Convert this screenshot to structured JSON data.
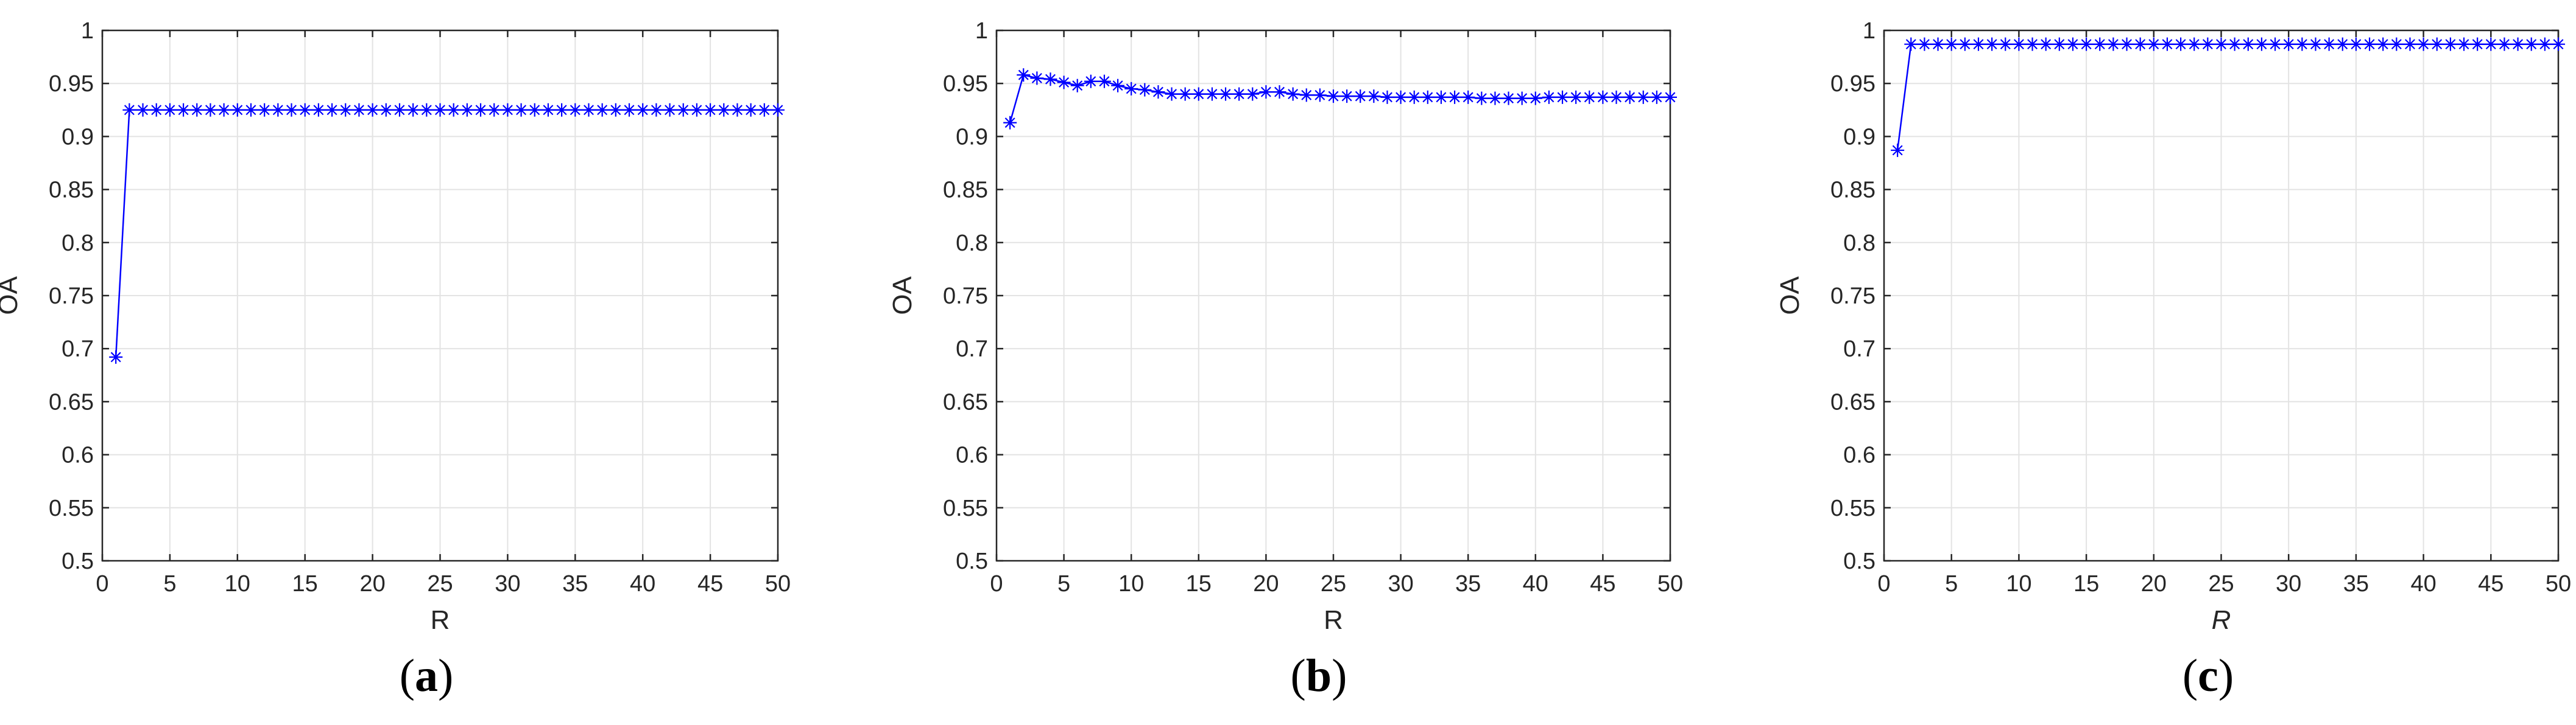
{
  "chart_data": [
    {
      "type": "line",
      "panel_label": "a",
      "title": "",
      "xlabel": "R",
      "ylabel": "OA",
      "xlim": [
        0,
        50
      ],
      "ylim": [
        0.5,
        1
      ],
      "xticks": [
        "0",
        "5",
        "10",
        "15",
        "20",
        "25",
        "30",
        "35",
        "40",
        "45",
        "50"
      ],
      "yticks": [
        "0.5",
        "0.55",
        "0.6",
        "0.65",
        "0.7",
        "0.75",
        "0.8",
        "0.85",
        "0.9",
        "0.95",
        "1"
      ],
      "grid": true,
      "marker": "asterisk",
      "color": "#0000ff",
      "x": [
        1,
        2,
        3,
        4,
        5,
        6,
        7,
        8,
        9,
        10,
        11,
        12,
        13,
        14,
        15,
        16,
        17,
        18,
        19,
        20,
        21,
        22,
        23,
        24,
        25,
        26,
        27,
        28,
        29,
        30,
        31,
        32,
        33,
        34,
        35,
        36,
        37,
        38,
        39,
        40,
        41,
        42,
        43,
        44,
        45,
        46,
        47,
        48,
        49,
        50
      ],
      "y": [
        0.692,
        0.925,
        0.925,
        0.925,
        0.925,
        0.925,
        0.925,
        0.925,
        0.925,
        0.925,
        0.925,
        0.925,
        0.925,
        0.925,
        0.925,
        0.925,
        0.925,
        0.925,
        0.925,
        0.925,
        0.925,
        0.925,
        0.925,
        0.925,
        0.925,
        0.925,
        0.925,
        0.925,
        0.925,
        0.925,
        0.925,
        0.925,
        0.925,
        0.925,
        0.925,
        0.925,
        0.925,
        0.925,
        0.925,
        0.925,
        0.925,
        0.925,
        0.925,
        0.925,
        0.925,
        0.925,
        0.925,
        0.925,
        0.925,
        0.925
      ]
    },
    {
      "type": "line",
      "panel_label": "b",
      "title": "",
      "xlabel": "R",
      "ylabel": "OA",
      "xlim": [
        0,
        50
      ],
      "ylim": [
        0.5,
        1
      ],
      "xticks": [
        "0",
        "5",
        "10",
        "15",
        "20",
        "25",
        "30",
        "35",
        "40",
        "45",
        "50"
      ],
      "yticks": [
        "0.5",
        "0.55",
        "0.6",
        "0.65",
        "0.7",
        "0.75",
        "0.8",
        "0.85",
        "0.9",
        "0.95",
        "1"
      ],
      "grid": true,
      "marker": "asterisk",
      "color": "#0000ff",
      "x": [
        1,
        2,
        3,
        4,
        5,
        6,
        7,
        8,
        9,
        10,
        11,
        12,
        13,
        14,
        15,
        16,
        17,
        18,
        19,
        20,
        21,
        22,
        23,
        24,
        25,
        26,
        27,
        28,
        29,
        30,
        31,
        32,
        33,
        34,
        35,
        36,
        37,
        38,
        39,
        40,
        41,
        42,
        43,
        44,
        45,
        46,
        47,
        48,
        49,
        50
      ],
      "y": [
        0.913,
        0.958,
        0.955,
        0.954,
        0.951,
        0.948,
        0.952,
        0.952,
        0.948,
        0.945,
        0.944,
        0.942,
        0.94,
        0.94,
        0.94,
        0.94,
        0.94,
        0.94,
        0.94,
        0.942,
        0.942,
        0.94,
        0.939,
        0.939,
        0.938,
        0.938,
        0.938,
        0.938,
        0.937,
        0.937,
        0.937,
        0.937,
        0.937,
        0.937,
        0.937,
        0.936,
        0.936,
        0.936,
        0.936,
        0.936,
        0.937,
        0.937,
        0.937,
        0.937,
        0.937,
        0.937,
        0.937,
        0.937,
        0.937,
        0.937
      ]
    },
    {
      "type": "line",
      "panel_label": "c",
      "title": "",
      "xlabel": "R",
      "xlabel_italic": true,
      "ylabel": "OA",
      "xlim": [
        0,
        50
      ],
      "ylim": [
        0.5,
        1
      ],
      "xticks": [
        "0",
        "5",
        "10",
        "15",
        "20",
        "25",
        "30",
        "35",
        "40",
        "45",
        "50"
      ],
      "yticks": [
        "0.5",
        "0.55",
        "0.6",
        "0.65",
        "0.7",
        "0.75",
        "0.8",
        "0.85",
        "0.9",
        "0.95",
        "1"
      ],
      "grid": true,
      "marker": "asterisk",
      "color": "#0000ff",
      "x": [
        1,
        2,
        3,
        4,
        5,
        6,
        7,
        8,
        9,
        10,
        11,
        12,
        13,
        14,
        15,
        16,
        17,
        18,
        19,
        20,
        21,
        22,
        23,
        24,
        25,
        26,
        27,
        28,
        29,
        30,
        31,
        32,
        33,
        34,
        35,
        36,
        37,
        38,
        39,
        40,
        41,
        42,
        43,
        44,
        45,
        46,
        47,
        48,
        49,
        50
      ],
      "y": [
        0.887,
        0.987,
        0.987,
        0.987,
        0.987,
        0.987,
        0.987,
        0.987,
        0.987,
        0.987,
        0.987,
        0.987,
        0.987,
        0.987,
        0.987,
        0.987,
        0.987,
        0.987,
        0.987,
        0.987,
        0.987,
        0.987,
        0.987,
        0.987,
        0.987,
        0.987,
        0.987,
        0.987,
        0.987,
        0.987,
        0.987,
        0.987,
        0.987,
        0.987,
        0.987,
        0.987,
        0.987,
        0.987,
        0.987,
        0.987,
        0.987,
        0.987,
        0.987,
        0.987,
        0.987,
        0.987,
        0.987,
        0.987,
        0.987,
        0.987
      ]
    }
  ]
}
